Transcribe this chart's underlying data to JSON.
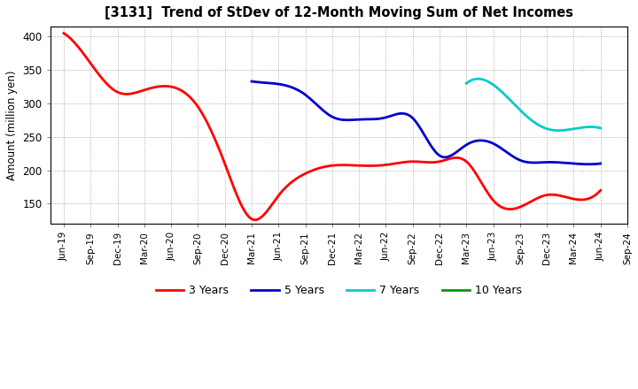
{
  "title": "[3131]  Trend of StDev of 12-Month Moving Sum of Net Incomes",
  "ylabel": "Amount (million yen)",
  "ylim": [
    120,
    415
  ],
  "yticks": [
    150,
    200,
    250,
    300,
    350,
    400
  ],
  "background_color": "#ffffff",
  "grid_color": "#aaaaaa",
  "series": {
    "3 Years": {
      "color": "#ff0000",
      "x": [
        0,
        1,
        2,
        3,
        4,
        5,
        6,
        7,
        8,
        9,
        10,
        11,
        12,
        13,
        14,
        15,
        16,
        17,
        18,
        19,
        20
      ],
      "y": [
        405,
        360,
        317,
        320,
        325,
        295,
        210,
        127,
        162,
        195,
        207,
        207,
        208,
        213,
        213,
        213,
        155,
        145,
        163,
        157,
        170
      ]
    },
    "5 Years": {
      "color": "#0000cc",
      "x": [
        7,
        8,
        9,
        10,
        11,
        12,
        13,
        14,
        15,
        16,
        17,
        18,
        19,
        20
      ],
      "y": [
        333,
        329,
        313,
        280,
        276,
        279,
        278,
        222,
        238,
        240,
        215,
        212,
        210,
        210
      ]
    },
    "7 Years": {
      "color": "#00cccc",
      "x": [
        15,
        16,
        17,
        18,
        19,
        20
      ],
      "y": [
        330,
        328,
        290,
        262,
        262,
        263
      ]
    },
    "10 Years": {
      "color": "#009900",
      "x": [],
      "y": []
    }
  },
  "xtick_labels": [
    "Jun-19",
    "Sep-19",
    "Dec-19",
    "Mar-20",
    "Jun-20",
    "Sep-20",
    "Dec-20",
    "Mar-21",
    "Jun-21",
    "Sep-21",
    "Dec-21",
    "Mar-22",
    "Jun-22",
    "Sep-22",
    "Dec-22",
    "Mar-23",
    "Jun-23",
    "Sep-23",
    "Dec-23",
    "Mar-24",
    "Jun-24",
    "Sep-24"
  ],
  "legend_order": [
    "3 Years",
    "5 Years",
    "7 Years",
    "10 Years"
  ]
}
